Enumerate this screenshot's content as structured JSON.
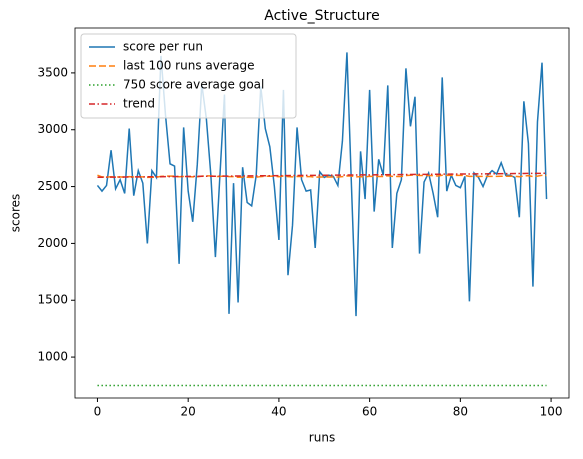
{
  "chart_data": {
    "type": "line",
    "title": "Active_Structure",
    "xlabel": "runs",
    "ylabel": "scores",
    "x": [
      0,
      1,
      2,
      3,
      4,
      5,
      6,
      7,
      8,
      9,
      10,
      11,
      12,
      13,
      14,
      15,
      16,
      17,
      18,
      19,
      20,
      21,
      22,
      23,
      24,
      25,
      26,
      27,
      28,
      29,
      30,
      31,
      32,
      33,
      34,
      35,
      36,
      37,
      38,
      39,
      40,
      41,
      42,
      43,
      44,
      45,
      46,
      47,
      48,
      49,
      50,
      51,
      52,
      53,
      54,
      55,
      56,
      57,
      58,
      59,
      60,
      61,
      62,
      63,
      64,
      65,
      66,
      67,
      68,
      69,
      70,
      71,
      72,
      73,
      74,
      75,
      76,
      77,
      78,
      79,
      80,
      81,
      82,
      83,
      84,
      85,
      86,
      87,
      88,
      89,
      90,
      91,
      92,
      93,
      94,
      95,
      96,
      97,
      98,
      99
    ],
    "series": [
      {
        "name": "score per run",
        "color": "#1f77b4",
        "linestyle": "solid",
        "values": [
          2510,
          2460,
          2510,
          2820,
          2480,
          2560,
          2440,
          3010,
          2420,
          2640,
          2530,
          2000,
          2640,
          2580,
          3650,
          3130,
          2700,
          2680,
          1820,
          3020,
          2460,
          2190,
          2690,
          3400,
          3100,
          2600,
          1880,
          2600,
          3310,
          1380,
          2530,
          1480,
          2670,
          2360,
          2330,
          2600,
          3380,
          3010,
          2850,
          2500,
          2030,
          3350,
          1720,
          2160,
          3020,
          2560,
          2460,
          2470,
          1960,
          2630,
          2580,
          2600,
          2590,
          2510,
          2900,
          3680,
          2500,
          1360,
          2810,
          2390,
          3350,
          2280,
          2740,
          2600,
          3390,
          1960,
          2440,
          2560,
          3540,
          3030,
          3290,
          1910,
          2540,
          2620,
          2440,
          2230,
          3460,
          2460,
          2600,
          2510,
          2490,
          2590,
          1490,
          2620,
          2580,
          2500,
          2600,
          2640,
          2610,
          2710,
          2600,
          2600,
          2580,
          2230,
          3250,
          2880,
          1620,
          3070,
          3590,
          2390
        ]
      },
      {
        "name": "last 100 runs average",
        "color": "#ff7f0e",
        "linestyle": "dashed",
        "values": [
          2600,
          2585,
          2583,
          2586,
          2584,
          2585,
          2583,
          2587,
          2584,
          2585,
          2585,
          2581,
          2582,
          2582,
          2590,
          2592,
          2592,
          2592,
          2586,
          2589,
          2588,
          2585,
          2586,
          2592,
          2594,
          2594,
          2589,
          2589,
          2594,
          2587,
          2587,
          2582,
          2583,
          2582,
          2581,
          2582,
          2588,
          2590,
          2592,
          2591,
          2587,
          2593,
          2588,
          2585,
          2589,
          2589,
          2588,
          2587,
          2583,
          2584,
          2584,
          2584,
          2584,
          2584,
          2587,
          2594,
          2593,
          2585,
          2587,
          2585,
          2591,
          2588,
          2589,
          2589,
          2595,
          2590,
          2589,
          2589,
          2597,
          2600,
          2603,
          2597,
          2597,
          2597,
          2596,
          2593,
          2600,
          2599,
          2599,
          2598,
          2598,
          2598,
          2590,
          2590,
          2590,
          2590,
          2590,
          2590,
          2590,
          2591,
          2591,
          2591,
          2591,
          2587,
          2593,
          2596,
          2588,
          2592,
          2599,
          2597
        ]
      },
      {
        "name": "750 score average goal",
        "color": "#2ca02c",
        "linestyle": "dotted",
        "x": [
          0,
          99
        ],
        "values": [
          750,
          750
        ]
      },
      {
        "name": "trend",
        "color": "#d62728",
        "linestyle": "dashdot",
        "x": [
          0,
          99
        ],
        "values": [
          2582,
          2617
        ]
      }
    ],
    "xlim": [
      -4.95,
      103.95
    ],
    "xticks": [
      0,
      20,
      40,
      60,
      80,
      100
    ],
    "ylim": [
      640,
      3895
    ],
    "yticks": [
      1000,
      1500,
      2000,
      2500,
      3000,
      3500
    ],
    "legend": "upper left",
    "grid": false
  }
}
